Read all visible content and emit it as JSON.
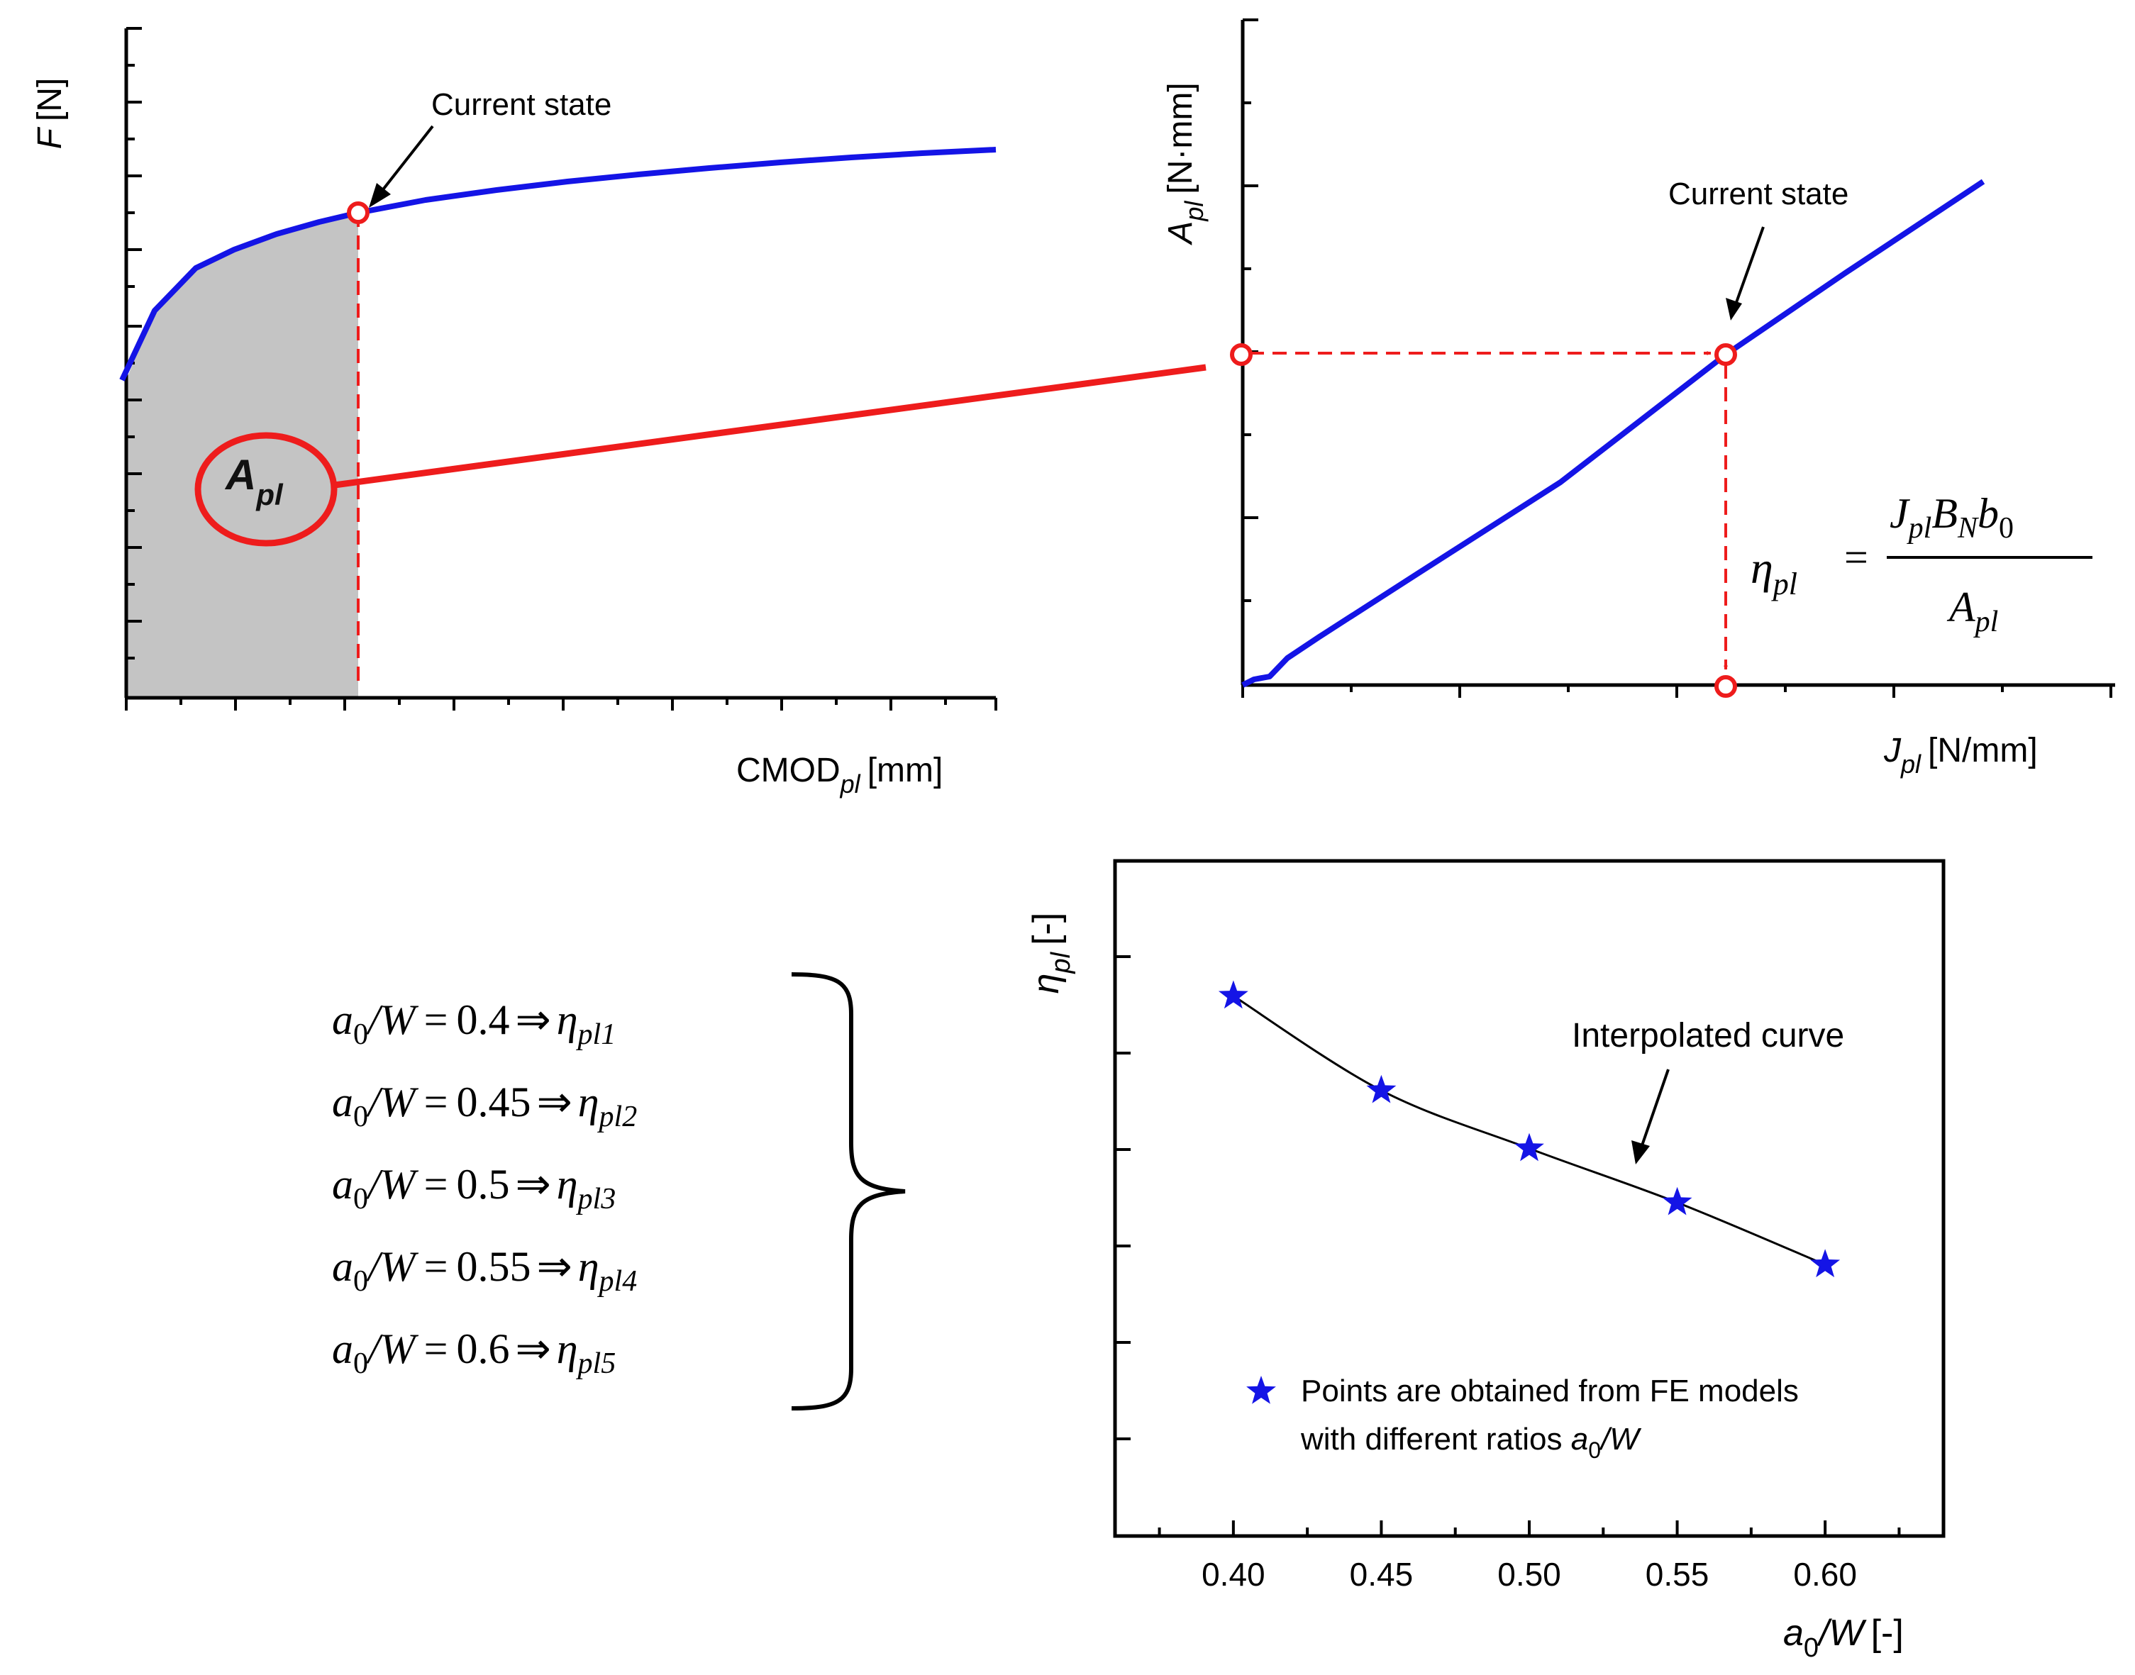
{
  "colors": {
    "curve": "#1414e6",
    "accent": "#ee1c1c",
    "shade": "#c4c4c4",
    "axis": "#000000"
  },
  "panel_force": {
    "y_label_symbol": "F",
    "y_label_unit": "[N]",
    "x_label_main": "CMOD",
    "x_label_sub": "pl",
    "x_label_unit": "[mm]",
    "annotation": "Current state",
    "area_label_main": "A",
    "area_label_sub": "pl"
  },
  "panel_area": {
    "y_label_main": "A",
    "y_label_sub": "pl",
    "y_label_unit": "[N·mm]",
    "x_label_main": "J",
    "x_label_sub": "pl",
    "x_label_unit": "[N/mm]",
    "annotation": "Current state",
    "formula": {
      "lhs_main": "η",
      "lhs_sub": "pl",
      "equals": "=",
      "num_J": "J",
      "num_J_sub": "pl",
      "num_B": "B",
      "num_B_sub": "N",
      "num_b": "b",
      "num_b_sub": "0",
      "den_main": "A",
      "den_sub": "pl"
    }
  },
  "ratio_list": [
    {
      "a": "a",
      "a_sub": "0",
      "slash_W": "/W",
      "eq": "=",
      "value": "0.4",
      "arrow": "⇒",
      "eta": "η",
      "eta_sub": "pl1"
    },
    {
      "a": "a",
      "a_sub": "0",
      "slash_W": "/W",
      "eq": "=",
      "value": "0.45",
      "arrow": "⇒",
      "eta": "η",
      "eta_sub": "pl2"
    },
    {
      "a": "a",
      "a_sub": "0",
      "slash_W": "/W",
      "eq": "=",
      "value": "0.5",
      "arrow": "⇒",
      "eta": "η",
      "eta_sub": "pl3"
    },
    {
      "a": "a",
      "a_sub": "0",
      "slash_W": "/W",
      "eq": "=",
      "value": "0.55",
      "arrow": "⇒",
      "eta": "η",
      "eta_sub": "pl4"
    },
    {
      "a": "a",
      "a_sub": "0",
      "slash_W": "/W",
      "eq": "=",
      "value": "0.6",
      "arrow": "⇒",
      "eta": "η",
      "eta_sub": "pl5"
    }
  ],
  "chart_data": {
    "type": "scatter",
    "title": "",
    "ylabel_main": "η",
    "ylabel_sub": "pl",
    "ylabel_unit": "[-]",
    "xlabel_main": "a",
    "xlabel_sub": "0",
    "xlabel_tail": "/W",
    "xlabel_unit": "[-]",
    "xlim": [
      0.36,
      0.64
    ],
    "ylim": [
      0,
      1
    ],
    "x_ticks": [
      "0.40",
      "0.45",
      "0.50",
      "0.55",
      "0.60"
    ],
    "series": [
      {
        "name": "Points are obtained from FE models",
        "marker": "star",
        "x": [
          0.4,
          0.45,
          0.5,
          0.55,
          0.6
        ],
        "y": [
          0.8,
          0.66,
          0.574,
          0.494,
          0.402
        ]
      }
    ],
    "curve_label": "Interpolated curve",
    "legend_line1": "Points are obtained from FE models",
    "legend_line2_prefix": "with different ratios ",
    "legend_line2_a": "a",
    "legend_line2_sub": "0",
    "legend_line2_tail": "/W",
    "legend_position": "bottom-left"
  }
}
